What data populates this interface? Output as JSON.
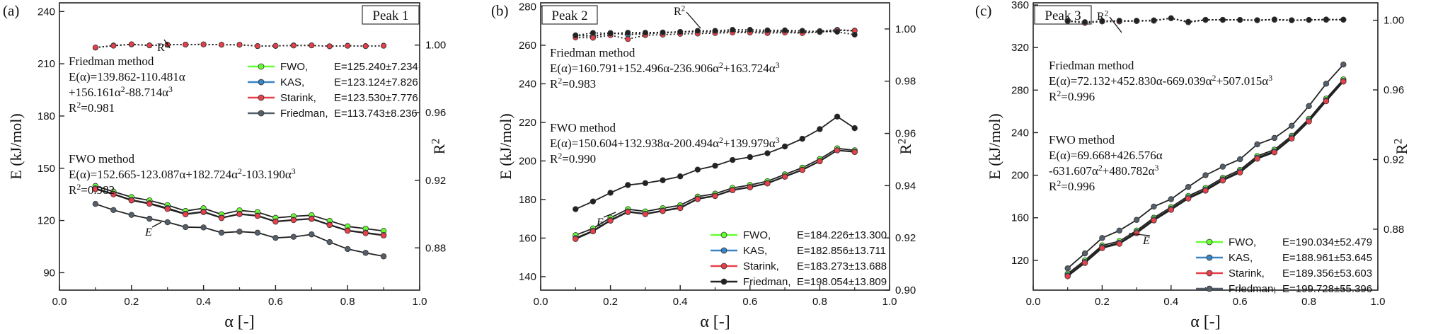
{
  "chart_data": [
    {
      "type": "line",
      "panel_label": "(a)",
      "box_label": "Peak 1",
      "xlabel": "α [-]",
      "ylabel": "E (kJ/mol)",
      "y2label": "R²",
      "xlim": [
        0.0,
        1.0
      ],
      "ylim": [
        80,
        245
      ],
      "y2lim": [
        0.855,
        1.025
      ],
      "xticks": [
        0.0,
        0.2,
        0.4,
        0.6,
        0.8,
        1.0
      ],
      "yticks": [
        90,
        120,
        150,
        180,
        210,
        240
      ],
      "y2ticks": [
        0.88,
        0.92,
        0.96,
        1.0
      ],
      "x": [
        0.1,
        0.15,
        0.2,
        0.25,
        0.3,
        0.35,
        0.4,
        0.45,
        0.5,
        0.55,
        0.6,
        0.65,
        0.7,
        0.75,
        0.8,
        0.85,
        0.9
      ],
      "series": [
        {
          "name": "FWO,",
          "stat": "E=125.240±7.234",
          "color": "#66ff33",
          "values": [
            139.8,
            136.6,
            133.4,
            131.5,
            128.8,
            125.5,
            127.0,
            123.5,
            125.8,
            124.8,
            121.5,
            122.4,
            123.0,
            119.8,
            116.6,
            115.3,
            114.0
          ]
        },
        {
          "name": "KAS,",
          "stat": "E=123.124±7.826",
          "color": "#3b84c4",
          "values": [
            138.4,
            135.3,
            131.8,
            129.9,
            127.1,
            123.8,
            125.1,
            121.6,
            123.8,
            122.8,
            119.5,
            120.4,
            121.1,
            117.6,
            114.3,
            113.0,
            111.6
          ]
        },
        {
          "name": "Starink,",
          "stat": "E=123.530±7.776",
          "color": "#e8404a",
          "values": [
            138.0,
            135.0,
            131.5,
            129.6,
            126.6,
            123.5,
            124.8,
            121.4,
            123.6,
            122.6,
            119.3,
            120.2,
            120.9,
            117.4,
            114.1,
            112.7,
            111.4
          ]
        },
        {
          "name": "Friedman,",
          "stat": "E=113.743±8.236",
          "color": "#555f6b",
          "values": [
            129.5,
            126.0,
            123.2,
            121.0,
            119.0,
            116.2,
            116.0,
            113.0,
            113.6,
            113.0,
            110.0,
            110.6,
            112.0,
            107.6,
            103.6,
            101.4,
            99.4
          ]
        }
      ],
      "r2_series": [
        {
          "name": "FWO",
          "color": "#66ff33",
          "values": [
            0.9985,
            0.9998,
            1.0004,
            0.9998,
            1.0002,
            1.0003,
            1.0004,
            1.0002,
            1.0002,
            0.9994,
            0.9995,
            0.9998,
            0.9998,
            0.9993,
            0.9996,
            0.9994,
            0.9996
          ]
        },
        {
          "name": "KAS",
          "color": "#3b84c4",
          "values": [
            0.9985,
            0.9997,
            1.0004,
            0.9998,
            1.0002,
            1.0003,
            1.0004,
            1.0002,
            1.0002,
            0.9994,
            0.9995,
            0.9998,
            0.9998,
            0.9993,
            0.9996,
            0.9994,
            0.9996
          ]
        },
        {
          "name": "Starink",
          "color": "#e8404a",
          "values": [
            0.9986,
            0.9996,
            1.0005,
            0.9998,
            1.0002,
            1.0003,
            1.0004,
            1.0002,
            1.0002,
            0.9994,
            0.9996,
            0.9997,
            0.9998,
            0.9993,
            0.9996,
            0.9994,
            0.9996
          ]
        }
      ],
      "annotations": {
        "friedman_title": "Friedman method",
        "friedman_eq": [
          "E(α)=139.862-110.481α",
          "+156.161α²-88.714α³",
          "R²=0.981"
        ],
        "fwo_title": "FWO method",
        "fwo_eq": [
          "E(α)=152.665-123.087α+182.724α²-103.190α³",
          "R²=0.982"
        ],
        "r2_marker": "R²",
        "e_marker": "E"
      },
      "legend_position": "top-right"
    },
    {
      "type": "line",
      "panel_label": "(b)",
      "box_label": "Peak 2",
      "xlabel": "α [-]",
      "ylabel": "E (kJ/mol)",
      "y2label": "R²",
      "xlim": [
        0.0,
        1.0
      ],
      "ylim": [
        133,
        282
      ],
      "y2lim": [
        0.9,
        1.01
      ],
      "xticks": [
        0.0,
        0.2,
        0.4,
        0.6,
        0.8,
        1.0
      ],
      "yticks": [
        140,
        160,
        180,
        200,
        220,
        240,
        260,
        280
      ],
      "y2ticks": [
        0.9,
        0.92,
        0.94,
        0.96,
        0.98,
        1.0
      ],
      "x": [
        0.1,
        0.15,
        0.2,
        0.25,
        0.3,
        0.35,
        0.4,
        0.45,
        0.5,
        0.55,
        0.6,
        0.65,
        0.7,
        0.75,
        0.8,
        0.85,
        0.9
      ],
      "series": [
        {
          "name": "FWO,",
          "stat": "E=184.226±13.300",
          "color": "#66ff33",
          "values": [
            161.5,
            165.0,
            170.5,
            175.0,
            173.8,
            175.5,
            177.0,
            181.5,
            183.0,
            186.0,
            187.5,
            189.5,
            193.0,
            196.5,
            201.0,
            206.5,
            205.5
          ]
        },
        {
          "name": "KAS,",
          "stat": "E=182.856±13.711",
          "color": "#3b84c4",
          "values": [
            160.0,
            163.8,
            169.3,
            173.8,
            172.6,
            174.3,
            175.8,
            180.5,
            182.0,
            185.0,
            186.5,
            188.5,
            192.0,
            195.5,
            200.0,
            205.5,
            204.8
          ]
        },
        {
          "name": "Starink,",
          "stat": "E=183.273±13.688",
          "color": "#e8404a",
          "values": [
            159.5,
            163.5,
            169.0,
            173.5,
            172.4,
            174.0,
            175.5,
            180.2,
            181.8,
            184.8,
            186.3,
            188.3,
            191.8,
            195.3,
            199.8,
            205.5,
            204.6
          ]
        },
        {
          "name": "Friedman,",
          "stat": "E=198.054±13.809",
          "color": "#222222",
          "values": [
            175.0,
            179.0,
            183.5,
            187.5,
            188.5,
            190.0,
            192.0,
            195.5,
            197.5,
            200.5,
            202.0,
            204.0,
            207.5,
            211.5,
            216.5,
            223.0,
            217.0
          ]
        }
      ],
      "r2_series": [
        {
          "name": "FWO",
          "color": "#66ff33",
          "values": [
            0.9975,
            0.9972,
            0.9984,
            0.9978,
            0.9982,
            0.9985,
            0.9988,
            0.9989,
            0.9989,
            0.999,
            0.999,
            0.9989,
            0.999,
            0.9986,
            0.9991,
            0.9996,
            0.9993
          ]
        },
        {
          "name": "KAS",
          "color": "#3b84c4",
          "values": [
            0.9976,
            0.9973,
            0.9985,
            0.9979,
            0.9983,
            0.9986,
            0.9989,
            0.999,
            0.999,
            0.9991,
            0.9991,
            0.999,
            0.9991,
            0.9987,
            0.9992,
            0.9997,
            0.9994
          ]
        },
        {
          "name": "Starink",
          "color": "#e8404a",
          "values": [
            0.9967,
            0.9966,
            0.9976,
            0.9961,
            0.9976,
            0.9978,
            0.9981,
            0.9982,
            0.9984,
            0.9986,
            0.9986,
            0.9984,
            0.9986,
            0.9984,
            0.9988,
            0.9994,
            0.9993
          ]
        },
        {
          "name": "Friedman",
          "color": "#222222",
          "values": [
            0.9975,
            0.9985,
            0.9983,
            0.9986,
            0.9986,
            0.9987,
            0.9989,
            0.9993,
            0.9993,
            0.9997,
            0.9997,
            0.9995,
            0.9995,
            0.9993,
            0.999,
            0.9989,
            0.9978
          ]
        }
      ],
      "annotations": {
        "friedman_title": "Friedman method",
        "friedman_eq": [
          "E(α)=160.791+152.496α-236.906α²+163.724α³",
          "R²=0.983"
        ],
        "fwo_title": "FWO method",
        "fwo_eq": [
          "E(α)=150.604+132.938α-200.494α²+139.979α³",
          "R²=0.990"
        ],
        "r2_marker": "R²",
        "e_marker": "E"
      },
      "legend_position": "bottom-right"
    },
    {
      "type": "line",
      "panel_label": "(c)",
      "box_label": "Peak 3",
      "xlabel": "α [-]",
      "ylabel": "E (kJ/mol)",
      "y2label": "R²",
      "xlim": [
        0.0,
        1.0
      ],
      "ylim": [
        92,
        362
      ],
      "y2lim": [
        0.845,
        1.01
      ],
      "xticks": [
        0.0,
        0.2,
        0.4,
        0.6,
        0.8,
        1.0
      ],
      "yticks": [
        120,
        160,
        200,
        240,
        280,
        320,
        360
      ],
      "y2ticks": [
        0.88,
        0.92,
        0.96,
        1.0
      ],
      "x": [
        0.1,
        0.15,
        0.2,
        0.25,
        0.3,
        0.35,
        0.4,
        0.45,
        0.5,
        0.55,
        0.6,
        0.65,
        0.7,
        0.75,
        0.8,
        0.85,
        0.9
      ],
      "series": [
        {
          "name": "FWO,",
          "stat": "E=190.034±52.479",
          "color": "#66ff33",
          "values": [
            107.5,
            120.0,
            134.0,
            138.0,
            148.0,
            160.0,
            170.0,
            180.5,
            188.0,
            197.5,
            205.0,
            218.0,
            224.0,
            237.0,
            253.0,
            272.0,
            290.0
          ]
        },
        {
          "name": "KAS,",
          "stat": "E=188.961±53.645",
          "color": "#3b84c4",
          "values": [
            106.0,
            118.5,
            132.5,
            136.5,
            146.5,
            158.5,
            168.5,
            179.0,
            186.5,
            196.0,
            203.5,
            216.5,
            222.5,
            235.5,
            251.5,
            270.5,
            288.5
          ]
        },
        {
          "name": "Starink,",
          "stat": "E=189.356±53.603",
          "color": "#e8404a",
          "values": [
            105.0,
            117.5,
            131.5,
            135.5,
            145.5,
            157.5,
            167.5,
            178.0,
            185.5,
            195.0,
            202.5,
            215.5,
            221.5,
            234.5,
            250.5,
            269.5,
            288.0
          ]
        },
        {
          "name": "Friedman,",
          "stat": "E=199.728±55.396",
          "color": "#555f6b",
          "values": [
            112.5,
            126.5,
            141.0,
            148.0,
            158.0,
            170.5,
            177.5,
            189.0,
            200.0,
            208.0,
            215.0,
            229.0,
            235.0,
            246.5,
            265.0,
            286.0,
            304.0
          ]
        }
      ],
      "r2_series": [
        {
          "name": "FWO",
          "color": "#66ff33",
          "values": [
            0.9995,
            0.9985,
            0.9993,
            0.9993,
            0.9995,
            0.9997,
            1.0012,
            0.9988,
            1.0002,
            1.0002,
            1.0002,
            1.0,
            1.0003,
            1.0,
            1.0002,
            1.0003,
            1.0003
          ]
        },
        {
          "name": "KAS",
          "color": "#3b84c4",
          "values": [
            0.9995,
            0.9985,
            0.9993,
            0.9993,
            0.9995,
            0.9997,
            1.0012,
            0.9988,
            1.0002,
            1.0002,
            1.0002,
            1.0,
            1.0003,
            1.0,
            1.0002,
            1.0003,
            1.0003
          ]
        },
        {
          "name": "Starink",
          "color": "#e8404a",
          "values": [
            0.9996,
            0.9984,
            0.9993,
            0.9993,
            0.9995,
            0.9997,
            1.0012,
            0.9988,
            1.0002,
            1.0002,
            1.0002,
            1.0,
            1.0003,
            1.0,
            1.0002,
            1.0003,
            1.0003
          ]
        },
        {
          "name": "Friedman",
          "color": "#222222",
          "values": [
            0.9997,
            0.999,
            0.9996,
            0.9998,
            0.9998,
            1.0,
            1.0011,
            0.9992,
            1.0003,
            1.0003,
            1.0002,
            1.0001,
            1.0005,
            1.0,
            1.0002,
            1.0005,
            1.0004
          ]
        }
      ],
      "annotations": {
        "friedman_title": "Friedman method",
        "friedman_eq": [
          "E(α)=72.132+452.830α-669.039α²+507.015α³",
          "R²=0.996"
        ],
        "fwo_title": "FWO method",
        "fwo_eq": [
          "E(α)=69.668+426.576α",
          "-631.607α²+480.782α³",
          "R²=0.996"
        ],
        "r2_marker": "R²",
        "e_marker": "E"
      },
      "legend_position": "bottom-right"
    }
  ]
}
